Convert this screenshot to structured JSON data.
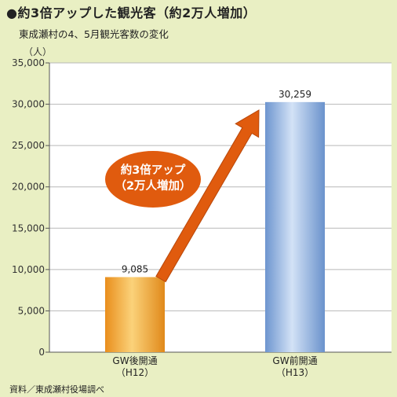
{
  "header": {
    "title": "●約3倍アップした観光客（約2万人増加）",
    "subtitle": "東成瀬村の4、5月観光客数の変化"
  },
  "footer": {
    "source": "資料／東成瀬村役場調べ"
  },
  "colors": {
    "background": "#e9efc3",
    "plot": "#ffffff",
    "bar1": "#f0a73c",
    "bar2": "#7fa6d9",
    "arrow": "#e05b0e",
    "badge": "#e05b0e"
  },
  "chart_data": {
    "type": "bar",
    "title": "●約3倍アップした観光客（約2万人増加）",
    "subtitle": "東成瀬村の4、5月観光客数の変化",
    "ylabel": "（人）",
    "ylim": [
      0,
      35000
    ],
    "yticks": [
      0,
      5000,
      10000,
      15000,
      20000,
      25000,
      30000,
      35000
    ],
    "ytick_labels": [
      "0",
      "5,000",
      "10,000",
      "15,000",
      "20,000",
      "25,000",
      "30,000",
      "35,000"
    ],
    "categories": [
      "GW後開通\n（H12）",
      "GW前開通\n（H13）"
    ],
    "category_lines": [
      [
        "GW後開通",
        "（H12）"
      ],
      [
        "GW前開通",
        "（H13）"
      ]
    ],
    "values": [
      9085,
      30259
    ],
    "value_labels": [
      "9,085",
      "30,259"
    ],
    "grid": true,
    "annotation": {
      "lines": [
        "約3倍アップ",
        "（2万人増加）"
      ],
      "arrow": "from first bar to second bar"
    }
  }
}
